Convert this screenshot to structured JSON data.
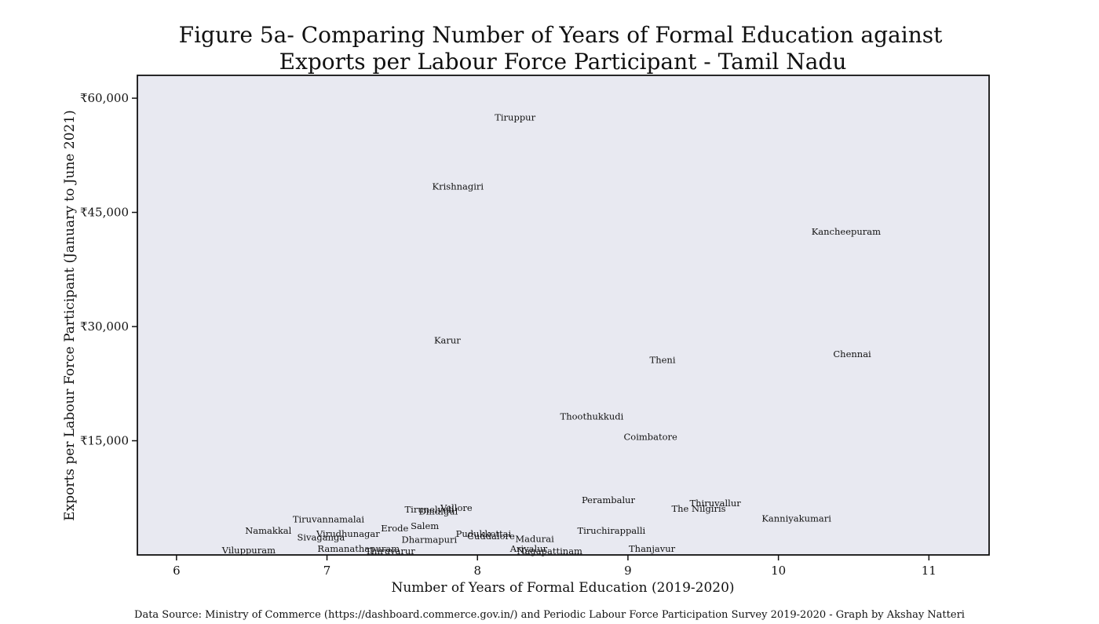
{
  "chart_data": {
    "type": "scatter",
    "title_line1": "Figure 5a- Comparing Number of Years of Formal Education against",
    "title_line2": "Exports per Labour Force Participant  - Tamil Nadu",
    "xlabel": "Number of Years of Formal Education (2019-2020)",
    "ylabel": "Exports per Labour Force Participant (January to June 2021)",
    "source": "Data Source:  Ministry of Commerce (https://dashboard.commerce.gov.in/) and Periodic Labour Force Participation Survey 2019-2020 - Graph by Akshay Natteri",
    "xlim": [
      5.74,
      11.4
    ],
    "ylim": [
      0,
      63000
    ],
    "xticks": [
      6,
      7,
      8,
      9,
      10,
      11
    ],
    "xtick_labels": [
      "6",
      "7",
      "8",
      "9",
      "10",
      "11"
    ],
    "yticks": [
      15000,
      30000,
      45000,
      60000
    ],
    "ytick_labels": [
      "₹15,000",
      "₹30,000",
      "₹45,000",
      "₹60,000"
    ],
    "background_color": "#e8e9f1",
    "points": [
      {
        "label": "Tiruppur",
        "x": 8.25,
        "y": 57500
      },
      {
        "label": "Krishnagiri",
        "x": 7.87,
        "y": 48400
      },
      {
        "label": "Kancheepuram",
        "x": 10.45,
        "y": 42500
      },
      {
        "label": "Karur",
        "x": 7.8,
        "y": 28200
      },
      {
        "label": "Theni",
        "x": 9.23,
        "y": 25600
      },
      {
        "label": "Chennai",
        "x": 10.49,
        "y": 26400
      },
      {
        "label": "Thoothukkudi",
        "x": 8.76,
        "y": 18200
      },
      {
        "label": "Coimbatore",
        "x": 9.15,
        "y": 15500
      },
      {
        "label": "Perambalur",
        "x": 8.87,
        "y": 7200
      },
      {
        "label": "Thiruvallur",
        "x": 9.58,
        "y": 6800
      },
      {
        "label": "The Nilgiris",
        "x": 9.47,
        "y": 6100
      },
      {
        "label": "Kanniyakumari",
        "x": 10.12,
        "y": 4800
      },
      {
        "label": "Vellore",
        "x": 7.86,
        "y": 6200
      },
      {
        "label": "Tirunelveli",
        "x": 7.68,
        "y": 6000
      },
      {
        "label": "Dindigul",
        "x": 7.74,
        "y": 5700
      },
      {
        "label": "Tiruvannamalai",
        "x": 7.01,
        "y": 4700
      },
      {
        "label": "Salem",
        "x": 7.65,
        "y": 3800
      },
      {
        "label": "Erode",
        "x": 7.45,
        "y": 3500
      },
      {
        "label": "Namakkal",
        "x": 6.61,
        "y": 3200
      },
      {
        "label": "Virudhunagar",
        "x": 7.14,
        "y": 2800
      },
      {
        "label": "Sivaganga",
        "x": 6.96,
        "y": 2300
      },
      {
        "label": "Tiruchirappalli",
        "x": 8.89,
        "y": 3200
      },
      {
        "label": "Pudukkottai",
        "x": 8.04,
        "y": 2800
      },
      {
        "label": "Cuddalore",
        "x": 8.09,
        "y": 2500
      },
      {
        "label": "Madurai",
        "x": 8.38,
        "y": 2100
      },
      {
        "label": "Dharmapuri",
        "x": 7.68,
        "y": 2000
      },
      {
        "label": "Ariyalur",
        "x": 8.34,
        "y": 800
      },
      {
        "label": "Nagapattinam",
        "x": 8.48,
        "y": 500
      },
      {
        "label": "Thanjavur",
        "x": 9.16,
        "y": 800
      },
      {
        "label": "Viluppuram",
        "x": 6.48,
        "y": 600
      },
      {
        "label": "Ramanathapuram",
        "x": 7.21,
        "y": 800
      },
      {
        "label": "Thiruvarur",
        "x": 7.42,
        "y": 500
      }
    ]
  }
}
